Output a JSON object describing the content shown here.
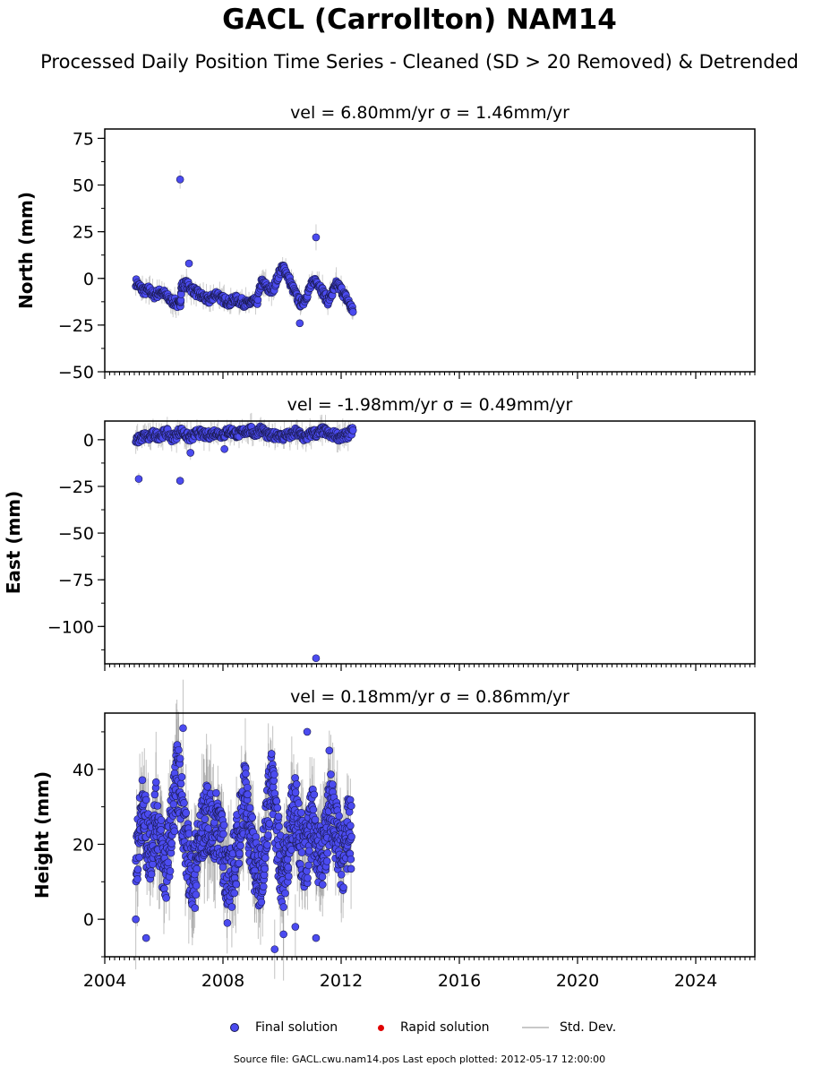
{
  "title": "GACL (Carrollton) NAM14",
  "subtitle": "Processed Daily Position Time Series - Cleaned (SD > 20 Removed) & Detrended",
  "legend": {
    "final": "Final solution",
    "rapid": "Rapid solution",
    "std": "Std. Dev."
  },
  "footer": "Source file: GACL.cwu.nam14.pos  Last epoch plotted: 2012-05-17 12:00:00",
  "colors": {
    "final": "#4b4bf0",
    "rapid": "#e00000",
    "std": "#c8c8c8"
  },
  "chart_data": [
    {
      "type": "scatter",
      "title": "vel = 6.80mm/yr   σ = 1.46mm/yr",
      "ylabel": "North (mm)",
      "xlim": [
        2004,
        2026
      ],
      "ylim": [
        -50,
        80
      ],
      "yticks": [
        -50,
        -25,
        0,
        25,
        50,
        75
      ],
      "yticklabels": [
        "−50",
        "−25",
        "0",
        "25",
        "50",
        "75"
      ],
      "xticks": [
        2004,
        2008,
        2012,
        2016,
        2020,
        2024
      ],
      "xticklabels": [],
      "series": [
        {
          "name": "Final solution",
          "x": [
            2005.05,
            2005.2,
            2005.35,
            2005.5,
            2005.65,
            2005.8,
            2005.95,
            2006.1,
            2006.25,
            2006.4,
            2006.55,
            2006.6,
            2006.75,
            2006.9,
            2007.05,
            2007.2,
            2007.35,
            2007.5,
            2007.65,
            2007.8,
            2007.95,
            2008.1,
            2008.25,
            2008.4,
            2008.55,
            2008.7,
            2008.85,
            2009.0,
            2009.15,
            2009.3,
            2009.45,
            2009.6,
            2009.75,
            2009.9,
            2010.05,
            2010.2,
            2010.35,
            2010.5,
            2010.65,
            2010.8,
            2010.95,
            2011.1,
            2011.25,
            2011.4,
            2011.55,
            2011.7,
            2011.85,
            2012.0,
            2012.15,
            2012.3,
            2012.4
          ],
          "y": [
            -2,
            -5,
            -7,
            -6,
            -9,
            -8,
            -7,
            -10,
            -12,
            -13,
            -15,
            -4,
            -3,
            -5,
            -7,
            -9,
            -10,
            -12,
            -10,
            -8,
            -11,
            -12,
            -13,
            -11,
            -12,
            -13,
            -14,
            -12,
            -13,
            -2,
            -4,
            -7,
            -4,
            3,
            6,
            1,
            -5,
            -10,
            -14,
            -10,
            -5,
            -1,
            -3,
            -8,
            -12,
            -8,
            -3,
            -6,
            -10,
            -14,
            -18
          ],
          "outliers": {
            "x": [
              2006.55,
              2006.85,
              2010.6,
              2011.15
            ],
            "y": [
              53,
              8,
              -24,
              22
            ]
          }
        }
      ]
    },
    {
      "type": "scatter",
      "title": "vel = -1.98mm/yr   σ = 0.49mm/yr",
      "ylabel": "East (mm)",
      "xlim": [
        2004,
        2026
      ],
      "ylim": [
        -120,
        10
      ],
      "yticks": [
        -100,
        -75,
        -50,
        -25,
        0
      ],
      "yticklabels": [
        "−100",
        "−75",
        "−50",
        "−25",
        "0"
      ],
      "xticks": [
        2004,
        2008,
        2012,
        2016,
        2020,
        2024
      ],
      "xticklabels": [],
      "series": [
        {
          "name": "Final solution",
          "x": [
            2005.05,
            2005.2,
            2005.35,
            2005.5,
            2005.65,
            2005.8,
            2005.95,
            2006.1,
            2006.25,
            2006.4,
            2006.55,
            2006.7,
            2006.85,
            2007.0,
            2007.15,
            2007.3,
            2007.45,
            2007.6,
            2007.75,
            2007.9,
            2008.05,
            2008.2,
            2008.35,
            2008.5,
            2008.65,
            2008.8,
            2008.95,
            2009.1,
            2009.25,
            2009.4,
            2009.55,
            2009.7,
            2009.85,
            2010.0,
            2010.15,
            2010.3,
            2010.45,
            2010.6,
            2010.75,
            2010.9,
            2011.05,
            2011.2,
            2011.35,
            2011.5,
            2011.65,
            2011.8,
            2011.95,
            2012.1,
            2012.25,
            2012.4
          ],
          "y": [
            -1,
            1,
            2,
            1,
            3,
            2,
            3,
            4,
            1,
            2,
            5,
            3,
            1,
            2,
            4,
            3,
            2,
            3,
            4,
            3,
            3,
            5,
            4,
            3,
            4,
            5,
            5,
            3,
            6,
            4,
            2,
            2,
            3,
            1,
            3,
            2,
            4,
            3,
            1,
            2,
            4,
            3,
            5,
            4,
            2,
            3,
            1,
            2,
            3,
            5
          ],
          "outliers": {
            "x": [
              2005.15,
              2006.55,
              2006.9,
              2008.05,
              2011.15
            ],
            "y": [
              -21,
              -22,
              -7,
              -5,
              -117
            ]
          }
        }
      ]
    },
    {
      "type": "scatter",
      "title": "vel = 0.18mm/yr   σ = 0.86mm/yr",
      "ylabel": "Height (mm)",
      "xlim": [
        2004,
        2026
      ],
      "ylim": [
        -10,
        55
      ],
      "yticks": [
        0,
        20,
        40
      ],
      "yticklabels": [
        "0",
        "20",
        "40"
      ],
      "xticks": [
        2004,
        2008,
        2012,
        2016,
        2020,
        2024
      ],
      "xticklabels": [
        "2004",
        "2008",
        "2012",
        "2016",
        "2020",
        "2024"
      ],
      "series": [
        {
          "name": "Final solution",
          "x": [
            2005.05,
            2005.15,
            2005.25,
            2005.35,
            2005.45,
            2005.55,
            2005.65,
            2005.75,
            2005.85,
            2005.95,
            2006.05,
            2006.15,
            2006.25,
            2006.35,
            2006.45,
            2006.55,
            2006.65,
            2006.75,
            2006.85,
            2006.95,
            2007.05,
            2007.15,
            2007.25,
            2007.35,
            2007.45,
            2007.55,
            2007.65,
            2007.75,
            2007.85,
            2007.95,
            2008.05,
            2008.15,
            2008.25,
            2008.35,
            2008.45,
            2008.55,
            2008.65,
            2008.75,
            2008.85,
            2008.95,
            2009.05,
            2009.15,
            2009.25,
            2009.35,
            2009.45,
            2009.55,
            2009.65,
            2009.75,
            2009.85,
            2009.95,
            2010.05,
            2010.15,
            2010.25,
            2010.35,
            2010.45,
            2010.55,
            2010.65,
            2010.75,
            2010.85,
            2010.95,
            2011.05,
            2011.15,
            2011.25,
            2011.35,
            2011.45,
            2011.55,
            2011.65,
            2011.75,
            2011.85,
            2011.95,
            2012.05,
            2012.15,
            2012.25,
            2012.35
          ],
          "y": [
            15,
            22,
            30,
            26,
            20,
            18,
            25,
            28,
            22,
            16,
            12,
            18,
            24,
            32,
            38,
            35,
            28,
            20,
            15,
            12,
            14,
            18,
            22,
            25,
            27,
            26,
            22,
            24,
            28,
            20,
            16,
            12,
            10,
            14,
            18,
            24,
            30,
            34,
            26,
            22,
            16,
            12,
            10,
            16,
            24,
            32,
            36,
            30,
            22,
            14,
            12,
            16,
            22,
            28,
            30,
            26,
            20,
            16,
            18,
            24,
            26,
            22,
            18,
            16,
            20,
            26,
            30,
            28,
            22,
            18,
            16,
            20,
            24,
            22
          ],
          "outliers": {
            "x": [
              2006.65,
              2007.05,
              2008.15,
              2009.75,
              2010.05,
              2010.85,
              2011.15,
              2011.6,
              2005.05,
              2005.4,
              2010.45
            ],
            "y": [
              51,
              3,
              -1,
              -8,
              -4,
              50,
              -5,
              45,
              0,
              -5,
              -2
            ]
          }
        }
      ]
    }
  ]
}
